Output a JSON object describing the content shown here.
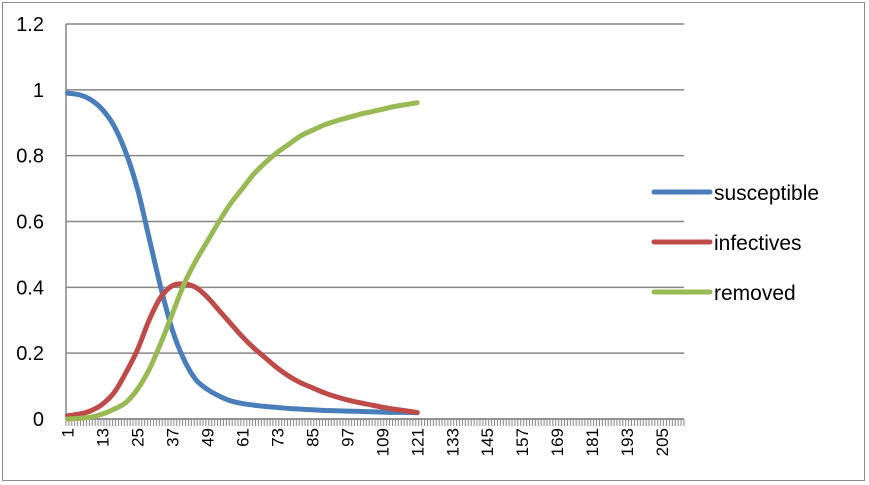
{
  "chart_data": {
    "type": "line",
    "title": "",
    "xlabel": "",
    "ylabel": "",
    "ylim": [
      0,
      1.2
    ],
    "yticks": [
      0,
      0.2,
      0.4,
      0.6,
      0.8,
      1,
      1.2
    ],
    "y_tick_labels": [
      "0",
      "0.2",
      "0.4",
      "0.6",
      "0.8",
      "1",
      "1.2"
    ],
    "xlim": [
      1,
      212
    ],
    "x_tick_labels": [
      "1",
      "13",
      "25",
      "37",
      "49",
      "61",
      "73",
      "85",
      "97",
      "109",
      "121",
      "133",
      "145",
      "157",
      "169",
      "181",
      "193",
      "205"
    ],
    "x_label_step": 12,
    "grid": "horizontal",
    "legend_position": "right",
    "series": [
      {
        "name": "susceptible",
        "color": "#4a7ebb",
        "x": [
          1,
          5,
          9,
          13,
          17,
          21,
          25,
          29,
          33,
          37,
          41,
          45,
          49,
          53,
          57,
          61,
          65,
          69,
          73,
          77,
          81,
          85,
          89,
          93,
          97,
          101,
          105,
          109,
          113,
          117,
          121
        ],
        "y": [
          0.99,
          0.985,
          0.97,
          0.94,
          0.89,
          0.81,
          0.7,
          0.55,
          0.4,
          0.27,
          0.18,
          0.12,
          0.09,
          0.07,
          0.055,
          0.047,
          0.042,
          0.038,
          0.035,
          0.032,
          0.03,
          0.028,
          0.026,
          0.025,
          0.024,
          0.023,
          0.022,
          0.021,
          0.02,
          0.02,
          0.019
        ]
      },
      {
        "name": "infectives",
        "color": "#be4b48",
        "x": [
          1,
          5,
          9,
          13,
          17,
          21,
          25,
          29,
          33,
          37,
          41,
          45,
          49,
          53,
          57,
          61,
          65,
          69,
          73,
          77,
          81,
          85,
          89,
          93,
          97,
          101,
          105,
          109,
          113,
          117,
          121
        ],
        "y": [
          0.01,
          0.015,
          0.025,
          0.045,
          0.08,
          0.14,
          0.21,
          0.3,
          0.37,
          0.405,
          0.41,
          0.4,
          0.37,
          0.33,
          0.29,
          0.25,
          0.215,
          0.185,
          0.155,
          0.13,
          0.11,
          0.095,
          0.08,
          0.068,
          0.058,
          0.05,
          0.043,
          0.036,
          0.03,
          0.025,
          0.02
        ]
      },
      {
        "name": "removed",
        "color": "#98b954",
        "x": [
          1,
          5,
          9,
          13,
          17,
          21,
          25,
          29,
          33,
          37,
          41,
          45,
          49,
          53,
          57,
          61,
          65,
          69,
          73,
          77,
          81,
          85,
          89,
          93,
          97,
          101,
          105,
          109,
          113,
          117,
          121
        ],
        "y": [
          0.0,
          0.002,
          0.006,
          0.015,
          0.03,
          0.05,
          0.09,
          0.15,
          0.23,
          0.32,
          0.41,
          0.48,
          0.54,
          0.6,
          0.655,
          0.7,
          0.745,
          0.78,
          0.81,
          0.835,
          0.86,
          0.877,
          0.893,
          0.905,
          0.915,
          0.925,
          0.933,
          0.941,
          0.949,
          0.955,
          0.961
        ]
      }
    ]
  }
}
